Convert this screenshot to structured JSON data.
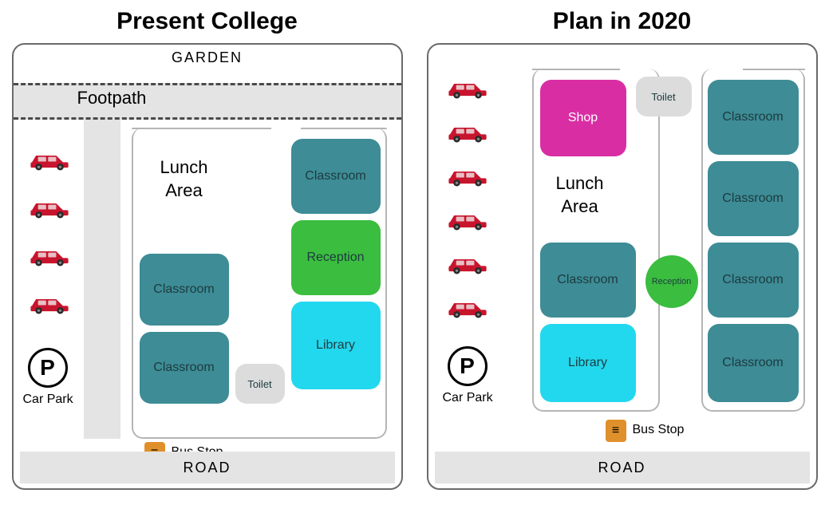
{
  "colors": {
    "teal": "#3d8c96",
    "green": "#3bbd3f",
    "cyan": "#22d8ee",
    "magenta": "#d92ea3",
    "lightgrey": "#dcdcdc",
    "roadgrey": "#e4e4e4",
    "carRed": "#c8142d",
    "busOrange": "#e0902a"
  },
  "left": {
    "title": "Present College",
    "garden": "GARDEN",
    "footpath": "Footpath",
    "carpark_letter": "P",
    "carpark_label": "Car Park",
    "lunch_area": "Lunch\nArea",
    "rooms": {
      "classroom_tr": "Classroom",
      "reception": "Reception",
      "library": "Library",
      "classroom_ml": "Classroom",
      "classroom_bl": "Classroom",
      "toilet": "Toilet"
    },
    "busstop": "Bus Stop",
    "road": "ROAD",
    "cars_y": [
      130,
      190,
      250,
      310
    ]
  },
  "right": {
    "title": "Plan in 2020",
    "carpark_letter": "P",
    "carpark_label": "Car Park",
    "lunch_area": "Lunch\nArea",
    "rooms": {
      "shop": "Shop",
      "toilet": "Toilet",
      "classroom_r1": "Classroom",
      "classroom_r2": "Classroom",
      "classroom_r3": "Classroom",
      "classroom_r4": "Classroom",
      "classroom_l": "Classroom",
      "library": "Library",
      "reception": "Reception"
    },
    "busstop": "Bus Stop",
    "road": "ROAD",
    "cars_y": [
      40,
      95,
      150,
      205,
      260,
      315
    ]
  }
}
